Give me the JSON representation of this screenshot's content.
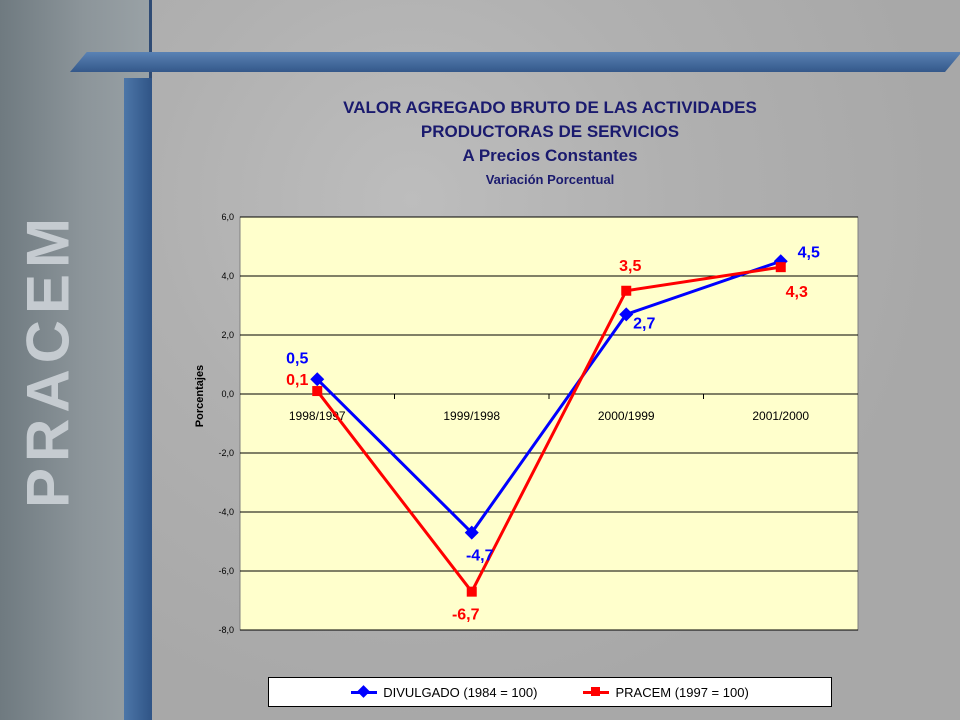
{
  "brand": "PRACEM",
  "titles": {
    "line1": "VALOR AGREGADO BRUTO DE LAS ACTIVIDADES",
    "line2": "PRODUCTORAS DE SERVICIOS",
    "line3": "A Precios Constantes",
    "line4": "Variación Porcentual"
  },
  "chart_data": {
    "type": "line",
    "categories": [
      "1998/1997",
      "1999/1998",
      "2000/1999",
      "2001/2000"
    ],
    "ylabel": "Porcentajes",
    "ylim": [
      -8.0,
      6.0
    ],
    "yticks": [
      "6,0",
      "4,0",
      "2,0",
      "0,0",
      "-2,0",
      "-4,0",
      "-6,0",
      "-8,0"
    ],
    "grid": true,
    "legend_position": "bottom",
    "plot_background": "#ffffcc",
    "series": [
      {
        "name": "DIVULGADO (1984 = 100)",
        "color": "#0000ff",
        "marker": "diamond",
        "values": [
          0.5,
          -4.7,
          2.7,
          4.5
        ],
        "labels": [
          "0,5",
          "-4,7",
          "2,7",
          "4,5"
        ]
      },
      {
        "name": "PRACEM (1997 = 100)",
        "color": "#ff0000",
        "marker": "square",
        "values": [
          0.1,
          -6.7,
          3.5,
          4.3
        ],
        "labels": [
          "0,1",
          "-6,7",
          "3,5",
          "4,3"
        ]
      }
    ]
  }
}
